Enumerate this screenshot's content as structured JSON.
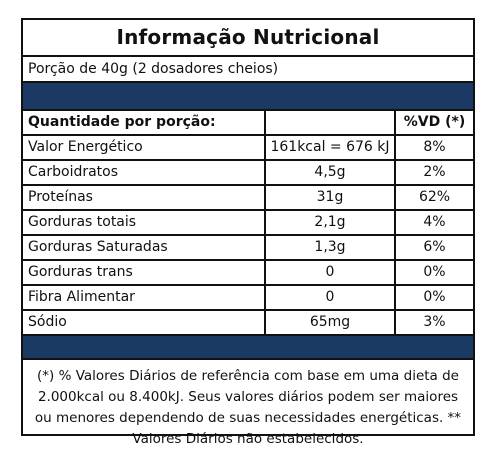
{
  "title": "Informação Nutricional",
  "portion": "Porção de 40g (2 dosadores cheios)",
  "table": {
    "header": {
      "label": "Quantidade por porção:",
      "amount": "",
      "vd": "%VD (*)"
    },
    "rows": [
      {
        "nutrient": "Valor Energético",
        "amount": "161kcal = 676 kJ",
        "vd": "8%"
      },
      {
        "nutrient": "Carboidratos",
        "amount": "4,5g",
        "vd": "2%"
      },
      {
        "nutrient": "Proteínas",
        "amount": "31g",
        "vd": "62%"
      },
      {
        "nutrient": "Gorduras totais",
        "amount": "2,1g",
        "vd": "4%"
      },
      {
        "nutrient": "Gorduras Saturadas",
        "amount": "1,3g",
        "vd": "6%"
      },
      {
        "nutrient": "Gorduras trans",
        "amount": "0",
        "vd": "0%"
      },
      {
        "nutrient": "Fibra Alimentar",
        "amount": "0",
        "vd": "0%"
      },
      {
        "nutrient": "Sódio",
        "amount": "65mg",
        "vd": "3%"
      }
    ]
  },
  "footnote": "(*) % Valores Diários de referência com base em uma dieta de 2.000kcal ou 8.400kJ. Seus valores diários podem ser maiores ou menores dependendo de suas necessidades energéticas. ** Valores Diários não estabelecidos.",
  "colors": {
    "band": "#1b3a63",
    "border": "#111111"
  }
}
